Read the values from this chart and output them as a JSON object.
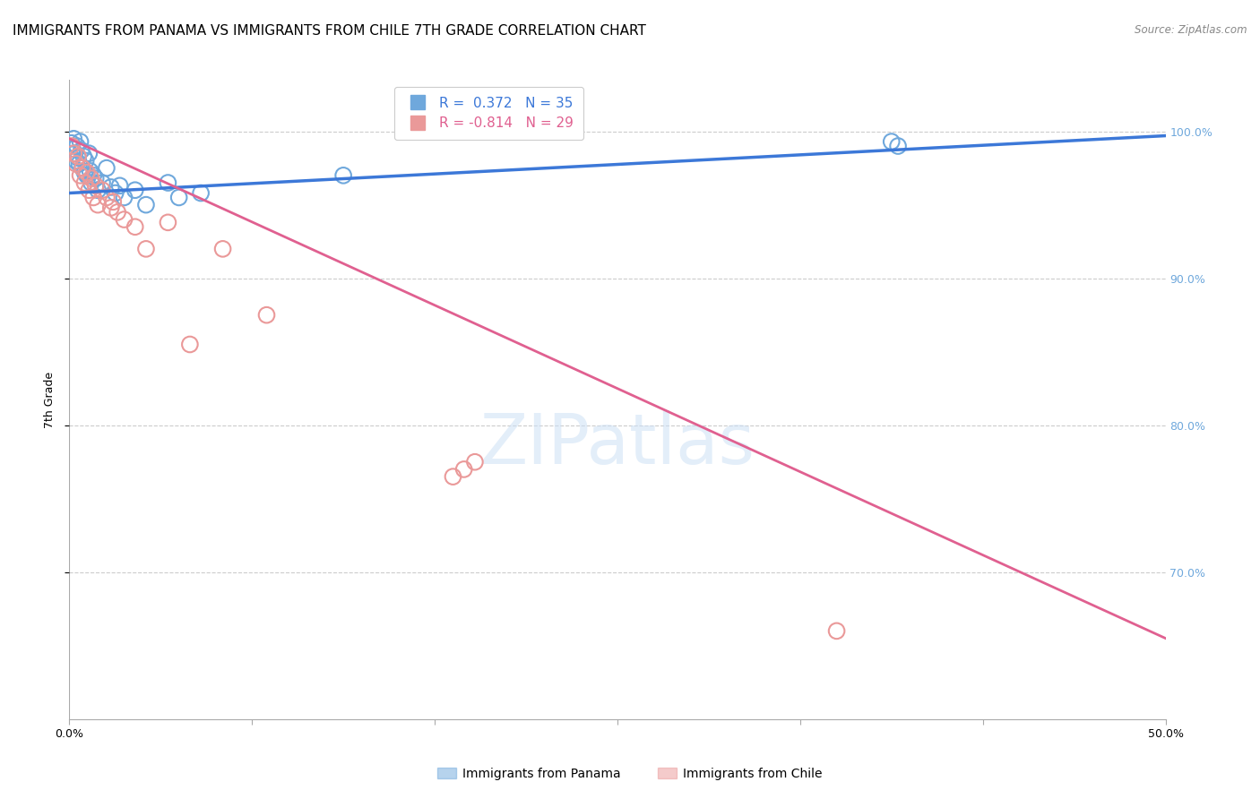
{
  "title": "IMMIGRANTS FROM PANAMA VS IMMIGRANTS FROM CHILE 7TH GRADE CORRELATION CHART",
  "source": "Source: ZipAtlas.com",
  "ylabel": "7th Grade",
  "xlim": [
    0.0,
    50.0
  ],
  "ylim": [
    60.0,
    103.5
  ],
  "yticks": [
    70.0,
    80.0,
    90.0,
    100.0
  ],
  "xticks": [
    0.0,
    8.33,
    16.67,
    25.0,
    33.33,
    41.67,
    50.0
  ],
  "watermark": "ZIPatlas",
  "legend_r_panama": "R =  0.372",
  "legend_n_panama": "N = 35",
  "legend_r_chile": "R = -0.814",
  "legend_n_chile": "N = 29",
  "legend_label_panama": "Immigrants from Panama",
  "legend_label_chile": "Immigrants from Chile",
  "color_panama": "#6fa8dc",
  "color_chile": "#ea9999",
  "color_trendline_panama": "#3c78d8",
  "color_trendline_chile": "#e06090",
  "color_axis_right": "#6fa8dc",
  "color_grid": "#cccccc",
  "panama_x": [
    0.1,
    0.15,
    0.2,
    0.25,
    0.3,
    0.35,
    0.4,
    0.45,
    0.5,
    0.55,
    0.6,
    0.65,
    0.7,
    0.75,
    0.8,
    0.9,
    0.95,
    1.0,
    1.1,
    1.2,
    1.3,
    1.5,
    1.7,
    1.9,
    2.1,
    2.3,
    2.5,
    3.0,
    3.5,
    4.5,
    5.0,
    6.0,
    12.5,
    37.5,
    37.8
  ],
  "panama_y": [
    99.2,
    98.8,
    99.5,
    98.5,
    98.0,
    99.0,
    98.2,
    97.8,
    99.3,
    98.7,
    97.5,
    98.3,
    97.2,
    98.0,
    97.0,
    98.5,
    97.3,
    96.5,
    97.0,
    96.8,
    96.0,
    96.5,
    97.5,
    96.2,
    95.8,
    96.3,
    95.5,
    96.0,
    95.0,
    96.5,
    95.5,
    95.8,
    97.0,
    99.3,
    99.0
  ],
  "chile_x": [
    0.1,
    0.2,
    0.3,
    0.4,
    0.5,
    0.6,
    0.7,
    0.8,
    0.9,
    1.0,
    1.1,
    1.2,
    1.3,
    1.5,
    1.7,
    1.9,
    2.0,
    2.2,
    2.5,
    3.0,
    3.5,
    4.5,
    5.5,
    7.0,
    9.0,
    17.5,
    18.0,
    18.5,
    35.0
  ],
  "chile_y": [
    99.0,
    98.5,
    97.8,
    98.3,
    97.0,
    97.5,
    96.5,
    97.2,
    96.0,
    96.8,
    95.5,
    96.3,
    95.0,
    96.0,
    95.5,
    94.8,
    95.2,
    94.5,
    94.0,
    93.5,
    92.0,
    93.8,
    85.5,
    92.0,
    87.5,
    76.5,
    77.0,
    77.5,
    66.0
  ],
  "trendline_panama_y0": 95.8,
  "trendline_panama_y1": 99.7,
  "trendline_chile_y0": 99.5,
  "trendline_chile_y1": 65.5,
  "background_color": "#ffffff",
  "title_fontsize": 11,
  "axis_label_fontsize": 9,
  "tick_fontsize": 9,
  "legend_fontsize": 11
}
